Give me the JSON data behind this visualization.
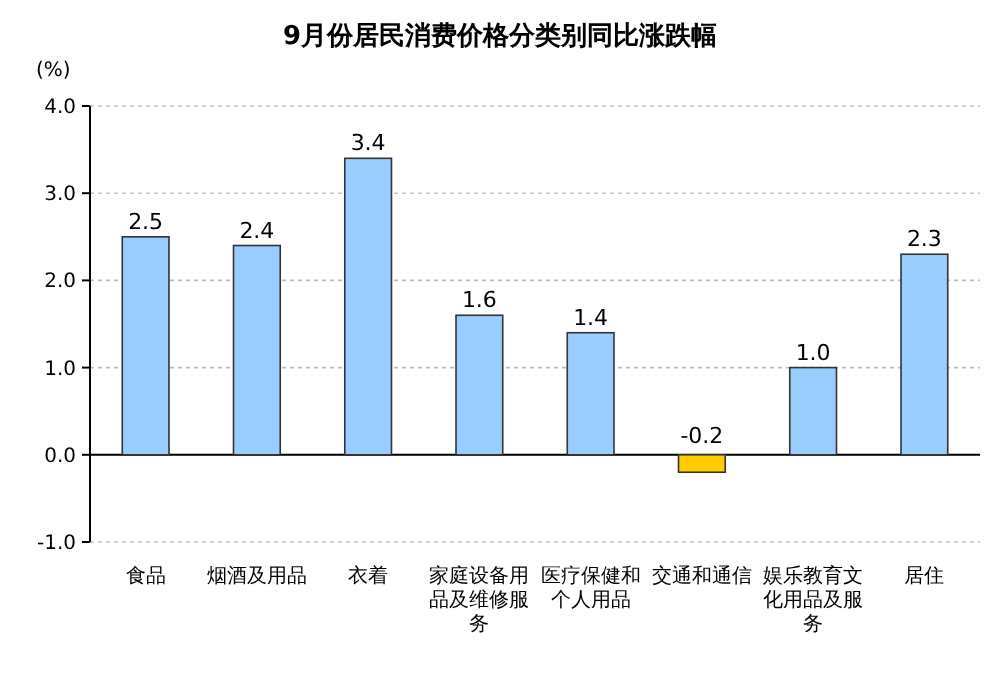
{
  "chart_data": {
    "type": "bar",
    "title": "9月份居民消费价格分类别同比涨跌幅",
    "ylabel": "(%)",
    "categories": [
      "食品",
      "烟酒及用品",
      "衣着",
      "家庭设备用品及维修服务",
      "医疗保健和个人用品",
      "交通和通信",
      "娱乐教育文化用品及服务",
      "居住"
    ],
    "values": [
      2.5,
      2.4,
      3.4,
      1.6,
      1.4,
      -0.2,
      1.0,
      2.3
    ],
    "colors": [
      "#99ccff",
      "#99ccff",
      "#99ccff",
      "#99ccff",
      "#99ccff",
      "#ffcc00",
      "#99ccff",
      "#99ccff"
    ],
    "ylim": [
      -1,
      4
    ],
    "yticks": [
      {
        "value": -1,
        "label": "-1.0"
      },
      {
        "value": 0,
        "label": "0.0"
      },
      {
        "value": 1,
        "label": "1.0"
      },
      {
        "value": 2,
        "label": "2.0"
      },
      {
        "value": 3,
        "label": "3.0"
      },
      {
        "value": 4,
        "label": "4.0"
      }
    ],
    "value_labels": [
      "2.5",
      "2.4",
      "3.4",
      "1.6",
      "1.4",
      "-0.2",
      "1.0",
      "2.3"
    ],
    "grid": "y"
  }
}
